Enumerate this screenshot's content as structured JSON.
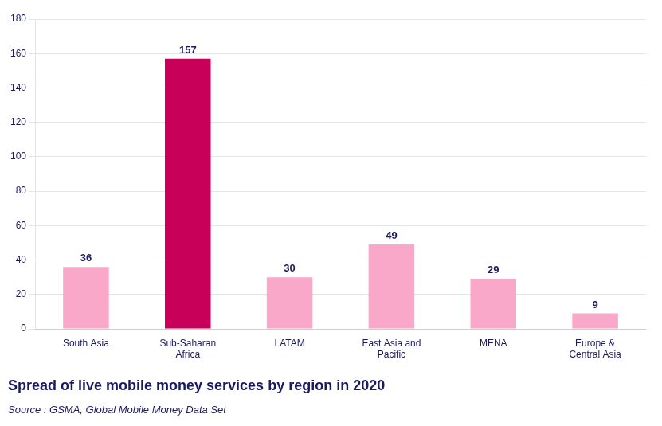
{
  "chart_data": {
    "type": "bar",
    "title": "Spread of live mobile money services by region in 2020",
    "subtitle": "Source : GSMA, Global Mobile Money Data Set",
    "categories": [
      "South Asia",
      "Sub-Saharan\nAfrica",
      "LATAM",
      "East Asia and\nPacific",
      "MENA",
      "Europe &\nCentral Asia"
    ],
    "values": [
      36,
      157,
      30,
      49,
      29,
      9
    ],
    "colors": [
      "#F9A8C9",
      "#C8005A",
      "#F9A8C9",
      "#F9A8C9",
      "#F9A8C9",
      "#F9A8C9"
    ],
    "ylim": [
      0,
      180
    ],
    "yticks": [
      0,
      20,
      40,
      60,
      80,
      100,
      120,
      140,
      160,
      180
    ],
    "grid": true,
    "data_labels": true
  }
}
